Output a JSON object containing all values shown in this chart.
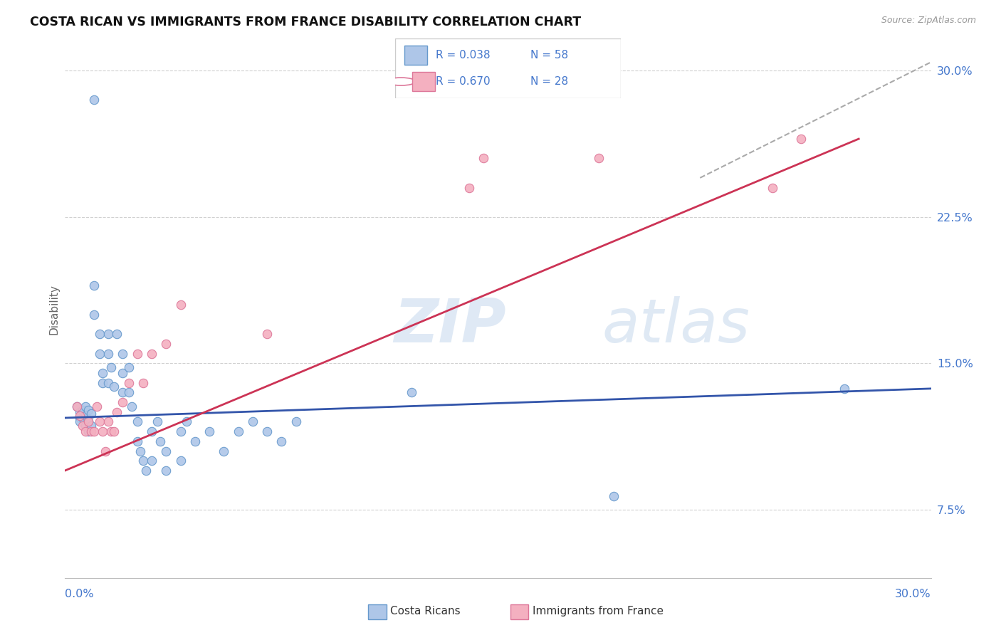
{
  "title": "COSTA RICAN VS IMMIGRANTS FROM FRANCE DISABILITY CORRELATION CHART",
  "source": "Source: ZipAtlas.com",
  "ylabel": "Disability",
  "xmin": 0.0,
  "xmax": 0.3,
  "ymin": 0.04,
  "ymax": 0.315,
  "ytick_vals": [
    0.075,
    0.15,
    0.225,
    0.3
  ],
  "ytick_labels": [
    "7.5%",
    "15.0%",
    "22.5%",
    "30.0%"
  ],
  "costa_ricans_color": "#aec6e8",
  "costa_ricans_edge": "#6699cc",
  "immigrants_color": "#f4b0c0",
  "immigrants_edge": "#dd7799",
  "blue_line_color": "#3355aa",
  "pink_line_color": "#cc3355",
  "dashed_line_color": "#aaaaaa",
  "legend_label1": "Costa Ricans",
  "legend_label2": "Immigrants from France",
  "watermark_zip": "ZIP",
  "watermark_atlas": "atlas",
  "grid_color": "#cccccc",
  "title_color": "#111111",
  "axis_label_color": "#4477cc",
  "legend_text_color": "#4477cc",
  "cr_x": [
    0.004,
    0.005,
    0.005,
    0.005,
    0.006,
    0.006,
    0.007,
    0.007,
    0.007,
    0.008,
    0.008,
    0.008,
    0.009,
    0.009,
    0.01,
    0.01,
    0.01,
    0.012,
    0.012,
    0.013,
    0.013,
    0.015,
    0.015,
    0.015,
    0.016,
    0.017,
    0.018,
    0.02,
    0.02,
    0.02,
    0.022,
    0.022,
    0.023,
    0.025,
    0.025,
    0.026,
    0.027,
    0.028,
    0.03,
    0.03,
    0.032,
    0.033,
    0.035,
    0.035,
    0.04,
    0.04,
    0.042,
    0.045,
    0.05,
    0.055,
    0.06,
    0.065,
    0.07,
    0.075,
    0.08,
    0.12,
    0.19,
    0.27
  ],
  "cr_y": [
    0.128,
    0.125,
    0.122,
    0.12,
    0.126,
    0.122,
    0.128,
    0.123,
    0.118,
    0.126,
    0.12,
    0.115,
    0.124,
    0.118,
    0.285,
    0.19,
    0.175,
    0.165,
    0.155,
    0.145,
    0.14,
    0.165,
    0.155,
    0.14,
    0.148,
    0.138,
    0.165,
    0.155,
    0.145,
    0.135,
    0.148,
    0.135,
    0.128,
    0.12,
    0.11,
    0.105,
    0.1,
    0.095,
    0.115,
    0.1,
    0.12,
    0.11,
    0.105,
    0.095,
    0.115,
    0.1,
    0.12,
    0.11,
    0.115,
    0.105,
    0.115,
    0.12,
    0.115,
    0.11,
    0.12,
    0.135,
    0.082,
    0.137
  ],
  "imm_x": [
    0.004,
    0.005,
    0.006,
    0.007,
    0.008,
    0.009,
    0.01,
    0.011,
    0.012,
    0.013,
    0.014,
    0.015,
    0.016,
    0.017,
    0.018,
    0.02,
    0.022,
    0.025,
    0.027,
    0.03,
    0.035,
    0.04,
    0.07,
    0.14,
    0.145,
    0.185,
    0.245,
    0.255
  ],
  "imm_y": [
    0.128,
    0.123,
    0.118,
    0.115,
    0.12,
    0.115,
    0.115,
    0.128,
    0.12,
    0.115,
    0.105,
    0.12,
    0.115,
    0.115,
    0.125,
    0.13,
    0.14,
    0.155,
    0.14,
    0.155,
    0.16,
    0.18,
    0.165,
    0.24,
    0.255,
    0.255,
    0.24,
    0.265
  ],
  "blue_line_x": [
    0.0,
    0.3
  ],
  "blue_line_y": [
    0.122,
    0.137
  ],
  "pink_line_x": [
    0.0,
    0.275
  ],
  "pink_line_y": [
    0.095,
    0.265
  ],
  "dashed_line_x": [
    0.22,
    0.305
  ],
  "dashed_line_y": [
    0.245,
    0.308
  ]
}
